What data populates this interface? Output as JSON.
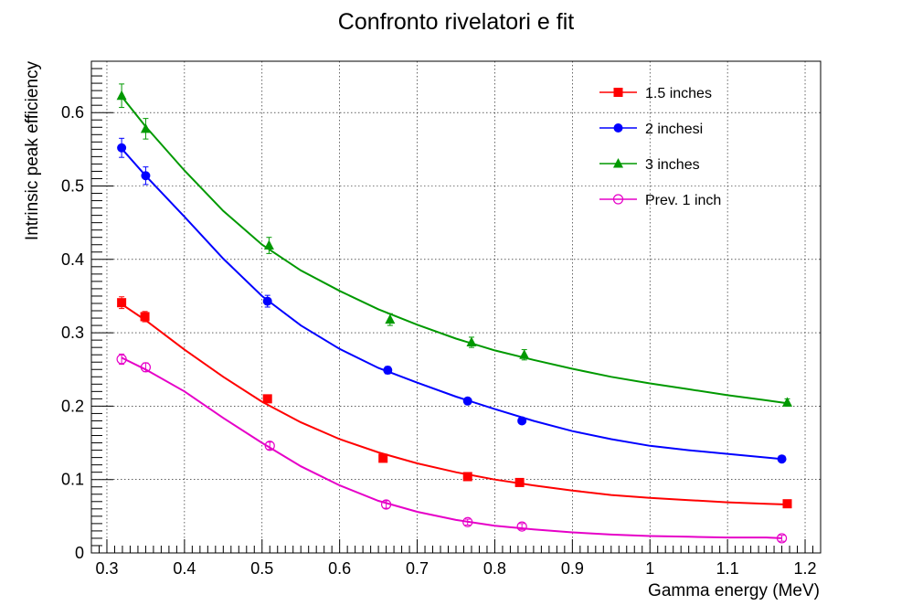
{
  "chart_data": {
    "type": "scatter",
    "title": "Confronto rivelatori e fit",
    "xlabel": "Gamma energy (MeV)",
    "ylabel": "Intrinsic peak efficiency",
    "xlim": [
      0.28,
      1.22
    ],
    "ylim": [
      0,
      0.67
    ],
    "x_ticks": [
      0.3,
      0.4,
      0.5,
      0.6,
      0.7,
      0.8,
      0.9,
      1,
      1.1,
      1.2
    ],
    "x_tick_labels": [
      "0.3",
      "0.4",
      "0.5",
      "0.6",
      "0.7",
      "0.8",
      "0.9",
      "1",
      "1.1",
      "1.2"
    ],
    "y_ticks": [
      0,
      0.1,
      0.2,
      0.3,
      0.4,
      0.5,
      0.6
    ],
    "y_tick_labels": [
      "0",
      "0.1",
      "0.2",
      "0.3",
      "0.4",
      "0.5",
      "0.6"
    ],
    "grid": true,
    "legend_position": "top-right",
    "series": [
      {
        "name": "1.5 inches",
        "color": "#ff0000",
        "marker": "square",
        "x": [
          0.319,
          0.349,
          0.507,
          0.656,
          0.765,
          0.832,
          1.177
        ],
        "y": [
          0.341,
          0.322,
          0.21,
          0.129,
          0.104,
          0.096,
          0.067
        ],
        "yerr": [
          0.008,
          0.007,
          0.005,
          0.004,
          0.003,
          0.003,
          0.002
        ],
        "fit_x": [
          0.319,
          0.35,
          0.4,
          0.45,
          0.5,
          0.55,
          0.6,
          0.65,
          0.7,
          0.75,
          0.8,
          0.85,
          0.9,
          0.95,
          1.0,
          1.05,
          1.1,
          1.15,
          1.177
        ],
        "fit_y": [
          0.339,
          0.317,
          0.277,
          0.24,
          0.206,
          0.178,
          0.155,
          0.137,
          0.122,
          0.11,
          0.1,
          0.092,
          0.085,
          0.079,
          0.075,
          0.072,
          0.069,
          0.067,
          0.066
        ]
      },
      {
        "name": "2 inchesi",
        "color": "#0000ff",
        "marker": "circle",
        "x": [
          0.319,
          0.35,
          0.507,
          0.662,
          0.765,
          0.835,
          1.17
        ],
        "y": [
          0.552,
          0.514,
          0.343,
          0.249,
          0.207,
          0.18,
          0.128
        ],
        "yerr": [
          0.013,
          0.012,
          0.008,
          0.005,
          0.004,
          0.004,
          0.003
        ],
        "fit_x": [
          0.319,
          0.35,
          0.4,
          0.45,
          0.5,
          0.55,
          0.6,
          0.65,
          0.7,
          0.75,
          0.8,
          0.85,
          0.9,
          0.95,
          1.0,
          1.05,
          1.1,
          1.15,
          1.17
        ],
        "fit_y": [
          0.551,
          0.514,
          0.458,
          0.401,
          0.35,
          0.31,
          0.278,
          0.252,
          0.232,
          0.213,
          0.196,
          0.18,
          0.166,
          0.155,
          0.146,
          0.14,
          0.135,
          0.13,
          0.128
        ]
      },
      {
        "name": "3 inches",
        "color": "#009900",
        "marker": "triangle",
        "x": [
          0.319,
          0.35,
          0.509,
          0.665,
          0.77,
          0.838,
          1.177
        ],
        "y": [
          0.623,
          0.578,
          0.419,
          0.318,
          0.287,
          0.27,
          0.205
        ],
        "yerr": [
          0.016,
          0.014,
          0.011,
          0.008,
          0.007,
          0.007,
          0.005
        ],
        "fit_x": [
          0.319,
          0.35,
          0.4,
          0.45,
          0.5,
          0.55,
          0.6,
          0.65,
          0.7,
          0.75,
          0.8,
          0.85,
          0.9,
          0.95,
          1.0,
          1.05,
          1.1,
          1.15,
          1.177
        ],
        "fit_y": [
          0.622,
          0.581,
          0.521,
          0.466,
          0.42,
          0.385,
          0.357,
          0.332,
          0.311,
          0.292,
          0.276,
          0.263,
          0.251,
          0.24,
          0.231,
          0.223,
          0.215,
          0.208,
          0.204
        ]
      },
      {
        "name": "Prev. 1 inch",
        "color": "#e600c8",
        "marker": "open-circle",
        "x": [
          0.319,
          0.35,
          0.51,
          0.66,
          0.765,
          0.835,
          1.17
        ],
        "y": [
          0.264,
          0.253,
          0.146,
          0.066,
          0.042,
          0.036,
          0.02
        ],
        "yerr": [
          0.007,
          0.006,
          0.005,
          0.005,
          0.004,
          0.004,
          0.004
        ],
        "fit_x": [
          0.319,
          0.35,
          0.4,
          0.45,
          0.5,
          0.55,
          0.6,
          0.65,
          0.7,
          0.75,
          0.8,
          0.85,
          0.9,
          0.95,
          1.0,
          1.05,
          1.1,
          1.15,
          1.17
        ],
        "fit_y": [
          0.266,
          0.25,
          0.22,
          0.184,
          0.15,
          0.118,
          0.092,
          0.071,
          0.056,
          0.045,
          0.037,
          0.032,
          0.028,
          0.025,
          0.023,
          0.022,
          0.021,
          0.021,
          0.02
        ]
      }
    ]
  }
}
